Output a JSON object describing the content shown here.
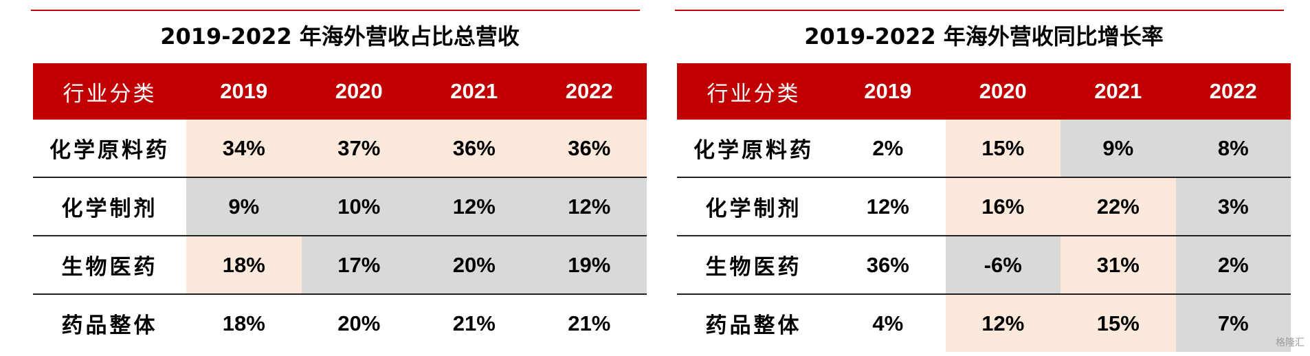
{
  "left": {
    "title": "2019-2022 年海外营收占比总营收",
    "headers": [
      "行业分类",
      "2019",
      "2020",
      "2021",
      "2022"
    ],
    "rows": [
      {
        "label": "化学原料药",
        "cells": [
          {
            "v": "34%",
            "c": "peach"
          },
          {
            "v": "37%",
            "c": "peach"
          },
          {
            "v": "36%",
            "c": "peach"
          },
          {
            "v": "36%",
            "c": "peach"
          }
        ]
      },
      {
        "label": "化学制剂",
        "cells": [
          {
            "v": "9%",
            "c": "gray"
          },
          {
            "v": "10%",
            "c": "gray"
          },
          {
            "v": "12%",
            "c": "gray"
          },
          {
            "v": "12%",
            "c": "gray"
          }
        ]
      },
      {
        "label": "生物医药",
        "cells": [
          {
            "v": "18%",
            "c": "peach"
          },
          {
            "v": "17%",
            "c": "gray"
          },
          {
            "v": "20%",
            "c": "gray"
          },
          {
            "v": "19%",
            "c": "gray"
          }
        ]
      },
      {
        "label": "药品整体",
        "cells": [
          {
            "v": "18%",
            "c": "plain"
          },
          {
            "v": "20%",
            "c": "plain"
          },
          {
            "v": "21%",
            "c": "plain"
          },
          {
            "v": "21%",
            "c": "plain"
          }
        ]
      }
    ]
  },
  "right": {
    "title": "2019-2022 年海外营收同比增长率",
    "headers": [
      "行业分类",
      "2019",
      "2020",
      "2021",
      "2022"
    ],
    "rows": [
      {
        "label": "化学原料药",
        "cells": [
          {
            "v": "2%",
            "c": "plain"
          },
          {
            "v": "15%",
            "c": "peach"
          },
          {
            "v": "9%",
            "c": "gray"
          },
          {
            "v": "8%",
            "c": "gray"
          }
        ]
      },
      {
        "label": "化学制剂",
        "cells": [
          {
            "v": "12%",
            "c": "plain"
          },
          {
            "v": "16%",
            "c": "peach"
          },
          {
            "v": "22%",
            "c": "peach"
          },
          {
            "v": "3%",
            "c": "gray"
          }
        ]
      },
      {
        "label": "生物医药",
        "cells": [
          {
            "v": "36%",
            "c": "plain"
          },
          {
            "v": "-6%",
            "c": "gray"
          },
          {
            "v": "31%",
            "c": "peach"
          },
          {
            "v": "2%",
            "c": "gray"
          }
        ]
      },
      {
        "label": "药品整体",
        "cells": [
          {
            "v": "4%",
            "c": "plain"
          },
          {
            "v": "12%",
            "c": "peach"
          },
          {
            "v": "15%",
            "c": "peach"
          },
          {
            "v": "7%",
            "c": "gray"
          }
        ]
      }
    ]
  },
  "colors": {
    "header_red": "#c00000",
    "peach": "#fde9dc",
    "gray": "#d9d9d9"
  },
  "watermark": "格隆汇"
}
